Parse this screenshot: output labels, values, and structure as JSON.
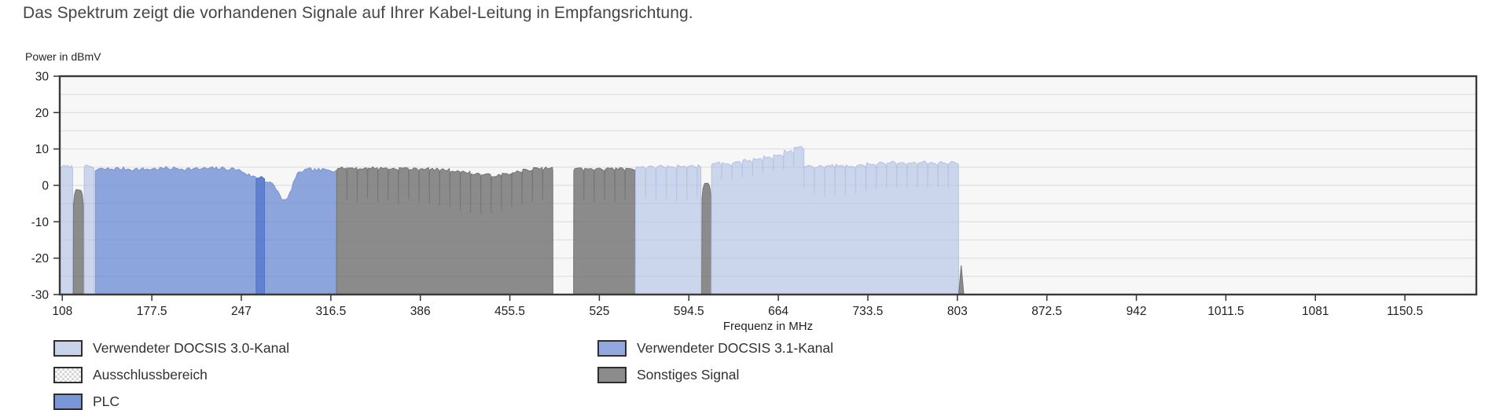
{
  "title": "Das Spektrum zeigt die vorhandenen Signale auf Ihrer Kabel-Leitung in Empfangsrichtung.",
  "chart_data": {
    "type": "area",
    "subtype": "rf-spectrum",
    "title": "",
    "xlabel": "Frequenz in MHz",
    "ylabel": "Power in dBmV",
    "xlim": [
      106,
      1206
    ],
    "ylim": [
      -30,
      30
    ],
    "x_ticks": [
      108,
      177.5,
      247,
      316.5,
      386,
      455.5,
      525,
      594.5,
      664,
      733.5,
      803,
      872.5,
      942,
      1011.5,
      1081,
      1150.5
    ],
    "y_ticks": [
      30,
      20,
      10,
      0,
      -10,
      -20,
      -30
    ],
    "grid_step_db": 5,
    "grid": true,
    "legend_position": "bottom",
    "colors": {
      "fill": {
        "docsis30": "#cbd6ec",
        "docsis31": "#8ca5dc",
        "plc": "#5f81d1",
        "other": "#8b8b8b"
      },
      "edge": {
        "docsis30": "#b5c4e3",
        "docsis31": "#7b94d0",
        "plc": "#5173c4",
        "other": "#757575"
      },
      "plot_bg": "#f7f7f7",
      "grid": "#e9e9e9",
      "border": "#3a3a3a"
    },
    "bands": [
      {
        "id": "docsis30-block-1",
        "series": "docsis30",
        "type": "block",
        "f": [
          106.5,
          116
        ],
        "top_dbmv": 5.2
      },
      {
        "id": "other-narrow-1",
        "series": "other",
        "type": "bell",
        "f": [
          116.5,
          124.5
        ],
        "top_dbmv": -1.2
      },
      {
        "id": "docsis30-block-2",
        "series": "docsis30",
        "type": "block",
        "f": [
          125,
          132.5
        ],
        "top_dbmv": 5.2
      },
      {
        "id": "docsis31-ofdm",
        "series": "docsis31",
        "type": "profile",
        "f": [
          133.5,
          320.5
        ],
        "profile": [
          [
            133.5,
            4.0
          ],
          [
            136,
            4.4
          ],
          [
            150,
            4.6
          ],
          [
            170,
            4.4
          ],
          [
            190,
            4.7
          ],
          [
            210,
            4.5
          ],
          [
            230,
            4.7
          ],
          [
            243,
            4.4
          ],
          [
            248,
            3.8
          ],
          [
            253,
            2.8
          ],
          [
            257,
            2.3
          ],
          [
            266,
            1.1
          ],
          [
            270,
            0.6
          ],
          [
            274,
            -0.9
          ],
          [
            278,
            -3.4
          ],
          [
            281,
            -4.5
          ],
          [
            284,
            -3.0
          ],
          [
            287,
            0.4
          ],
          [
            290,
            2.7
          ],
          [
            294,
            4.0
          ],
          [
            300,
            4.3
          ],
          [
            310,
            4.2
          ],
          [
            320.5,
            4.1
          ]
        ]
      },
      {
        "id": "plc",
        "series": "plc",
        "type": "block",
        "f": [
          258.5,
          265
        ],
        "top_dbmv": 2.3
      },
      {
        "id": "other-comb-1",
        "series": "other",
        "type": "comb",
        "f": [
          321,
          489
        ],
        "channel_mhz": 8,
        "tops": [
          4.7,
          4.8,
          4.6,
          4.8,
          4.7,
          4.6,
          4.7,
          4.5,
          4.6,
          4.4,
          4.3,
          4.0,
          3.6,
          3.2,
          2.9,
          2.7,
          3.1,
          3.7,
          4.2,
          4.6,
          4.7
        ],
        "gap_depth": [
          -4,
          -4.5,
          -3.5,
          -4.5,
          -4,
          -5,
          -4,
          -4.5,
          -5,
          -5.5,
          -6,
          -7,
          -7.5,
          -8,
          -7.5,
          -7,
          -6,
          -5,
          -4.5,
          -4
        ]
      },
      {
        "id": "other-comb-2",
        "series": "other",
        "type": "comb",
        "f": [
          505,
          553
        ],
        "channel_mhz": 8,
        "tops": [
          4.6,
          4.7,
          4.5,
          4.7,
          4.6,
          4.7
        ],
        "gap_depth": [
          -4,
          -4.5,
          -4,
          -4.5,
          -4
        ]
      },
      {
        "id": "docsis30-comb-1",
        "series": "docsis30",
        "type": "comb",
        "f": [
          553,
          604
        ],
        "channel_mhz": 8,
        "tops": [
          5.1,
          5.0,
          5.3,
          5.2,
          5.4,
          5.3,
          5.5
        ],
        "gap_depth": [
          -3.5,
          -4.2,
          -3.8,
          -4.4,
          -4.0,
          -3.6
        ]
      },
      {
        "id": "other-narrow-2",
        "series": "other",
        "type": "bell",
        "f": [
          604.5,
          612
        ],
        "top_dbmv": 0.4
      },
      {
        "id": "docsis30-comb-2",
        "series": "docsis30",
        "type": "comb",
        "f": [
          612,
          804
        ],
        "channel_mhz": 8,
        "tops": [
          6.2,
          6.0,
          6.3,
          6.8,
          7.3,
          7.8,
          8.5,
          9.4,
          10.5,
          5.3,
          5.2,
          5.5,
          5.6,
          5.3,
          5.6,
          5.9,
          6.1,
          6.3,
          6.2,
          6.1,
          6.4,
          6.2,
          6.3,
          6.4
        ],
        "gap_depth": [
          1.5,
          1.8,
          2.2,
          2.6,
          3.2,
          3.8,
          4.4,
          5.0,
          -0.5,
          -2.8,
          -3.2,
          -2.6,
          -2.9,
          -2.3,
          -1.6,
          -1.1,
          -0.8,
          -0.5,
          -0.8,
          -0.6,
          -0.7,
          -0.4,
          -0.6
        ]
      },
      {
        "id": "other-edge",
        "series": "other",
        "type": "wedge",
        "f": [
          804,
          808
        ],
        "top_dbmv": -22
      }
    ]
  },
  "legend": {
    "columns": [
      {
        "items": [
          {
            "key": "docsis30",
            "label": "Verwendeter DOCSIS 3.0-Kanal",
            "swatch": "#c9d4eb"
          },
          {
            "key": "exclusion",
            "label": "Ausschlussbereich",
            "swatch": "checker"
          },
          {
            "key": "plc",
            "label": "PLC",
            "swatch": "#7b96d6"
          }
        ]
      },
      {
        "items": [
          {
            "key": "docsis31",
            "label": "Verwendeter DOCSIS 3.1-Kanal",
            "swatch": "#91a9de"
          },
          {
            "key": "other",
            "label": "Sonstiges Signal",
            "swatch": "#8c8c8c"
          }
        ]
      }
    ]
  }
}
